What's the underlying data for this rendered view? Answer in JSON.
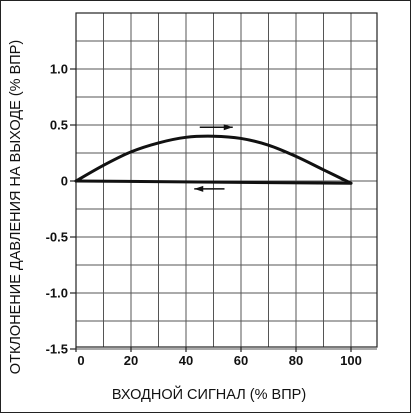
{
  "chart_data": {
    "type": "line",
    "title": "",
    "xlabel": "ВХОДНОЙ СИГНАЛ (% ВПР)",
    "ylabel": "ОТКЛОНЕНИЕ ДАВЛЕНИЯ НА ВЫХОДЕ (% ВПР)",
    "xlim": [
      0,
      100
    ],
    "ylim": [
      -1.5,
      1.5
    ],
    "x_ticks": [
      "0",
      "20",
      "40",
      "60",
      "80",
      "100"
    ],
    "y_ticks": [
      "1.0",
      "0.5",
      "0",
      "-0.5",
      "-1.0",
      "-1.5"
    ],
    "grid": true,
    "series": [
      {
        "direction": "increasing",
        "x": [
          0,
          10,
          20,
          30,
          40,
          50,
          60,
          70,
          80,
          90,
          100
        ],
        "y": [
          0,
          0.14,
          0.26,
          0.34,
          0.39,
          0.4,
          0.38,
          0.32,
          0.22,
          0.1,
          -0.02
        ]
      },
      {
        "direction": "decreasing",
        "x": [
          100,
          0
        ],
        "y": [
          -0.02,
          0
        ]
      }
    ],
    "annotations": [
      {
        "type": "arrow",
        "direction": "right",
        "x_from": 45,
        "x_to": 57,
        "y": 0.48
      },
      {
        "type": "arrow",
        "direction": "left",
        "x_from": 54,
        "x_to": 43,
        "y": -0.07
      }
    ]
  }
}
